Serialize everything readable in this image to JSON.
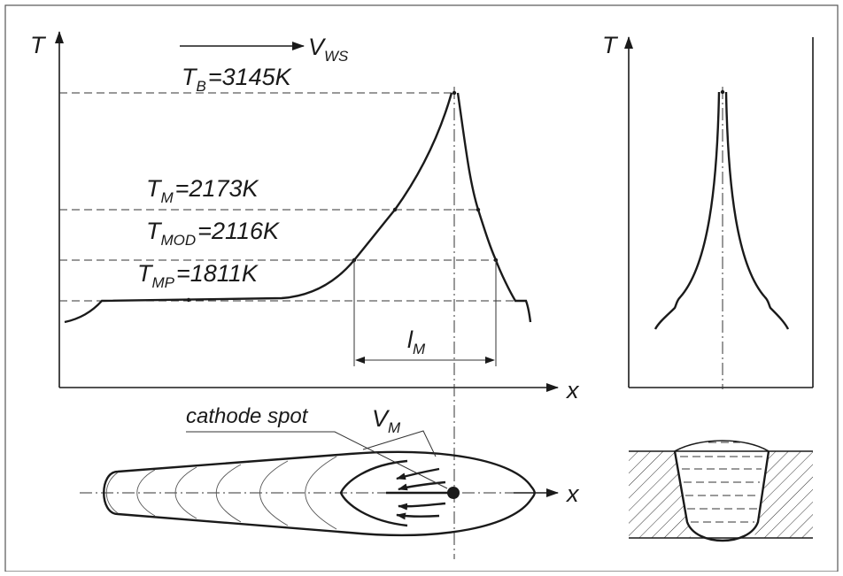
{
  "axes": {
    "graph_y_label": "T",
    "graph_x_label": "x",
    "right_y_label": "T",
    "bottom_x_label": "x"
  },
  "velocity_label": {
    "main": "V",
    "sub": "WS"
  },
  "temperatures": [
    {
      "main": "T",
      "sub": "B",
      "value": "=3145K"
    },
    {
      "main": "T",
      "sub": "M",
      "value": "=2173K"
    },
    {
      "main": "T",
      "sub": "MOD",
      "value": "=2116K"
    },
    {
      "main": "T",
      "sub": "MP",
      "value": "=1811K"
    }
  ],
  "length_label": {
    "main": "l",
    "sub": "M"
  },
  "pool_labels": {
    "cathode_spot": "cathode spot",
    "vm_main": "V",
    "vm_sub": "M"
  },
  "colors": {
    "line": "#1a1a1a",
    "hatch": "#333333",
    "background": "#ffffff"
  }
}
